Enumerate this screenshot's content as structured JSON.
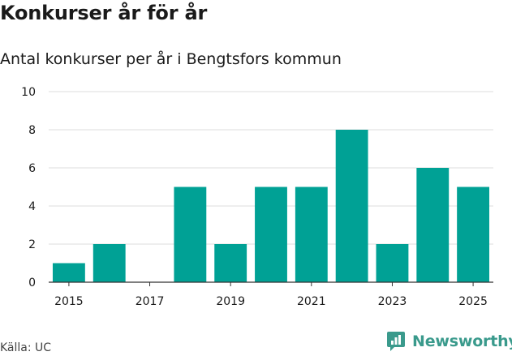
{
  "title": "Konkurser år för år",
  "subtitle": "Antal konkurser per år i Bengtsfors kommun",
  "source": "Källa: UC",
  "brand": "Newsworthy",
  "colors": {
    "bar": "#00a195",
    "grid": "#dddddd",
    "axis": "#333333",
    "brand": "#3a9a8c"
  },
  "chart_data": {
    "type": "bar",
    "categories": [
      "2015",
      "2016",
      "2017",
      "2018",
      "2019",
      "2020",
      "2021",
      "2022",
      "2023",
      "2024",
      "2025"
    ],
    "values": [
      1,
      2,
      0,
      5,
      2,
      5,
      5,
      8,
      2,
      6,
      5
    ],
    "x_tick_labels": [
      "2015",
      "2017",
      "2019",
      "2021",
      "2023",
      "2025"
    ],
    "y_ticks": [
      0,
      2,
      4,
      6,
      8,
      10
    ],
    "ylim": [
      0,
      10
    ],
    "xlabel": "",
    "ylabel": "",
    "grid": true
  }
}
